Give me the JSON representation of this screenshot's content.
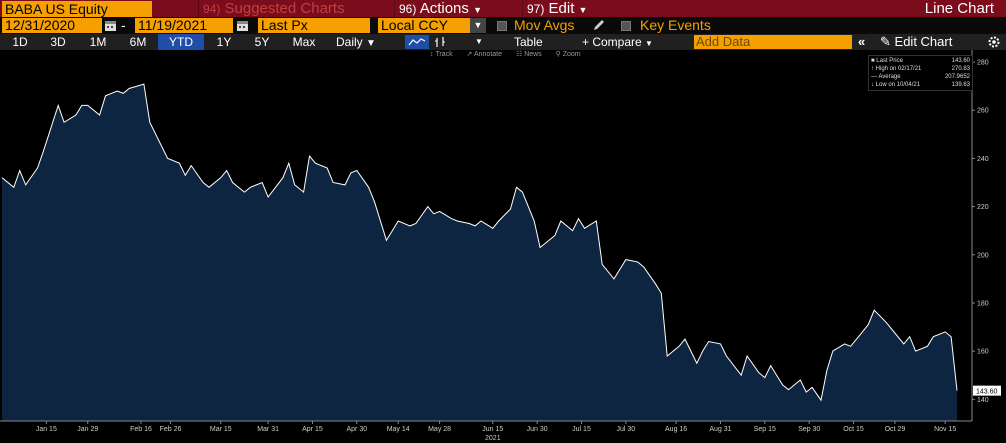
{
  "header": {
    "security": "BABA US Equity",
    "suggested_num": "94)",
    "suggested_label": "Suggested Charts",
    "actions_num": "96)",
    "actions_label": "Actions",
    "edit_num": "97)",
    "edit_label": "Edit",
    "chart_title": "Line Chart"
  },
  "params": {
    "start_date": "12/31/2020",
    "end_date": "11/19/2021",
    "dash": "-",
    "field": "Last Px",
    "currency": "Local CCY",
    "mov_avgs": "Mov Avgs",
    "key_events": "Key Events"
  },
  "toolbar": {
    "periods": [
      "1D",
      "3D",
      "1M",
      "6M",
      "YTD",
      "1Y",
      "5Y",
      "Max"
    ],
    "selected_period": "YTD",
    "frequency": "Daily",
    "table": "Table",
    "compare": "+ Compare",
    "add_data_placeholder": "Add Data",
    "edit_chart": "Edit Chart",
    "collapse": "«",
    "track": "Track",
    "annotate": "Annotate",
    "news": "News",
    "zoom": "Zoom"
  },
  "legend": {
    "last_price_label": "Last Price",
    "last_price_value": "143.60",
    "high_label": "High on 02/17/21",
    "high_value": "270.83",
    "average_label": "Average",
    "average_value": "207.9652",
    "low_label": "Low on 10/04/21",
    "low_value": "139.63"
  },
  "colors": {
    "header_bg": "#7a0c1c",
    "orange_field": "#f5a000",
    "selected_blue": "#1f4ea8",
    "area_fill": "#0d2540",
    "line": "#ffffff"
  },
  "chart_data": {
    "type": "area",
    "x_year_label": "2021",
    "x_ticks": [
      "Jan 15",
      "Jan 29",
      "Feb 16",
      "Feb 26",
      "Mar 15",
      "Mar 31",
      "Apr 15",
      "Apr 30",
      "May 14",
      "May 28",
      "Jun 15",
      "Jun 30",
      "Jul 15",
      "Jul 30",
      "Aug 16",
      "Aug 31",
      "Sep 15",
      "Sep 30",
      "Oct 15",
      "Oct 29",
      "Nov 15"
    ],
    "y_ticks": [
      140,
      160,
      180,
      200,
      220,
      240,
      260,
      280
    ],
    "ylim": [
      131,
      285
    ],
    "last_value_label": "143.60",
    "grid": false,
    "series": [
      {
        "name": "Last Price",
        "x": [
          "2020-12-31",
          "2021-01-04",
          "2021-01-06",
          "2021-01-08",
          "2021-01-12",
          "2021-01-14",
          "2021-01-19",
          "2021-01-21",
          "2021-01-25",
          "2021-01-27",
          "2021-01-29",
          "2021-02-02",
          "2021-02-04",
          "2021-02-08",
          "2021-02-10",
          "2021-02-12",
          "2021-02-17",
          "2021-02-19",
          "2021-02-23",
          "2021-02-25",
          "2021-03-01",
          "2021-03-03",
          "2021-03-05",
          "2021-03-09",
          "2021-03-11",
          "2021-03-15",
          "2021-03-17",
          "2021-03-19",
          "2021-03-23",
          "2021-03-25",
          "2021-03-29",
          "2021-03-31",
          "2021-04-05",
          "2021-04-07",
          "2021-04-09",
          "2021-04-12",
          "2021-04-14",
          "2021-04-16",
          "2021-04-20",
          "2021-04-22",
          "2021-04-26",
          "2021-04-28",
          "2021-04-30",
          "2021-05-04",
          "2021-05-06",
          "2021-05-10",
          "2021-05-12",
          "2021-05-14",
          "2021-05-18",
          "2021-05-20",
          "2021-05-24",
          "2021-05-26",
          "2021-05-28",
          "2021-06-01",
          "2021-06-03",
          "2021-06-07",
          "2021-06-09",
          "2021-06-11",
          "2021-06-15",
          "2021-06-17",
          "2021-06-21",
          "2021-06-23",
          "2021-06-25",
          "2021-06-29",
          "2021-07-01",
          "2021-07-06",
          "2021-07-08",
          "2021-07-12",
          "2021-07-14",
          "2021-07-16",
          "2021-07-20",
          "2021-07-22",
          "2021-07-26",
          "2021-07-28",
          "2021-07-30",
          "2021-08-03",
          "2021-08-05",
          "2021-08-09",
          "2021-08-11",
          "2021-08-13",
          "2021-08-17",
          "2021-08-19",
          "2021-08-23",
          "2021-08-25",
          "2021-08-27",
          "2021-08-31",
          "2021-09-02",
          "2021-09-07",
          "2021-09-09",
          "2021-09-13",
          "2021-09-15",
          "2021-09-17",
          "2021-09-21",
          "2021-09-23",
          "2021-09-27",
          "2021-09-29",
          "2021-10-01",
          "2021-10-04",
          "2021-10-06",
          "2021-10-08",
          "2021-10-12",
          "2021-10-14",
          "2021-10-18",
          "2021-10-20",
          "2021-10-22",
          "2021-10-26",
          "2021-10-28",
          "2021-11-01",
          "2021-11-03",
          "2021-11-05",
          "2021-11-09",
          "2021-11-11",
          "2021-11-15",
          "2021-11-17",
          "2021-11-19"
        ],
        "values": [
          232,
          228,
          235,
          229,
          236,
          243,
          262,
          255,
          258,
          262,
          262,
          258,
          266,
          268,
          267,
          269,
          270.83,
          255,
          245,
          240,
          238,
          233,
          237,
          230,
          228,
          232,
          235,
          230,
          226,
          228,
          230,
          224,
          232,
          238,
          229,
          226,
          241,
          238,
          236,
          230,
          229,
          234,
          235,
          228,
          222,
          206,
          210,
          214,
          212,
          213,
          220,
          217,
          218,
          215,
          214,
          213,
          212,
          214,
          211,
          214,
          219,
          228,
          226,
          214,
          203,
          208,
          214,
          210,
          215,
          211,
          214,
          196,
          190,
          194,
          198,
          197,
          195,
          188,
          184,
          158,
          162,
          165,
          155,
          160,
          164,
          163,
          158,
          150,
          158,
          151,
          149,
          154,
          146,
          144,
          148,
          143,
          145,
          139.63,
          152,
          160,
          163,
          162,
          168,
          171,
          177,
          172,
          169,
          163,
          166,
          160,
          162,
          166,
          168,
          166,
          143.6
        ]
      }
    ]
  }
}
